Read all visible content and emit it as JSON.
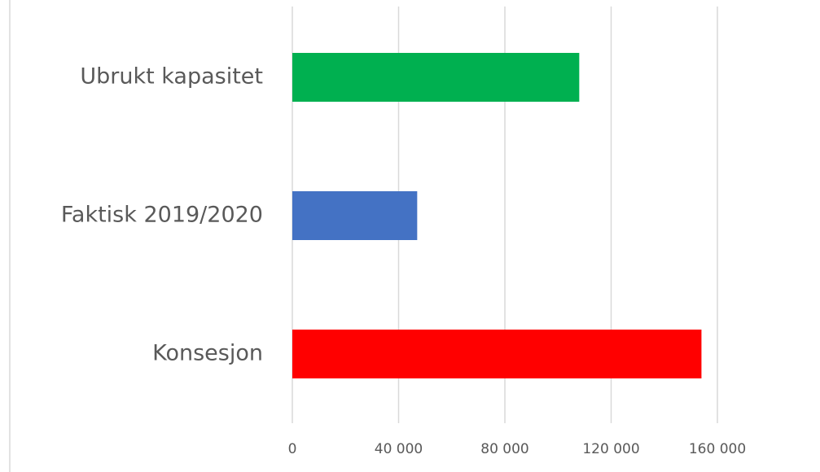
{
  "chart_data": {
    "type": "bar",
    "orientation": "horizontal",
    "categories": [
      "Ubrukt kapasitet",
      "Faktisk 2019/2020",
      "Konsesjon"
    ],
    "values": [
      108000,
      47000,
      154000
    ],
    "colors": [
      "#00b050",
      "#4472c4",
      "#ff0000"
    ],
    "xlim": [
      0,
      160000
    ],
    "x_ticks": [
      0,
      40000,
      80000,
      120000,
      160000
    ],
    "x_tick_labels": [
      "0",
      "40 000",
      "80 000",
      "120 000",
      "160 000"
    ],
    "grid": true,
    "legend": "none",
    "title": "",
    "xlabel": "",
    "ylabel": ""
  }
}
